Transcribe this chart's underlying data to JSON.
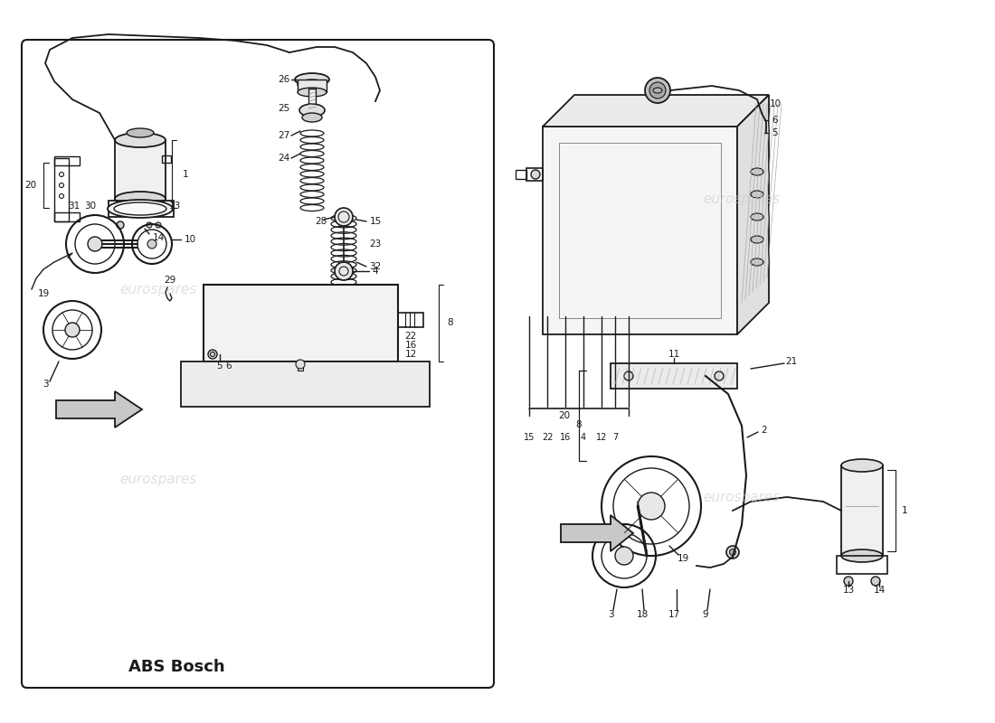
{
  "bg_color": "#ffffff",
  "line_color": "#1a1a1a",
  "wm_color": "#cccccc",
  "wm_text": "eurospares",
  "abs_label": "ABS Bosch",
  "fig_w": 11.0,
  "fig_h": 8.0,
  "dpi": 100
}
